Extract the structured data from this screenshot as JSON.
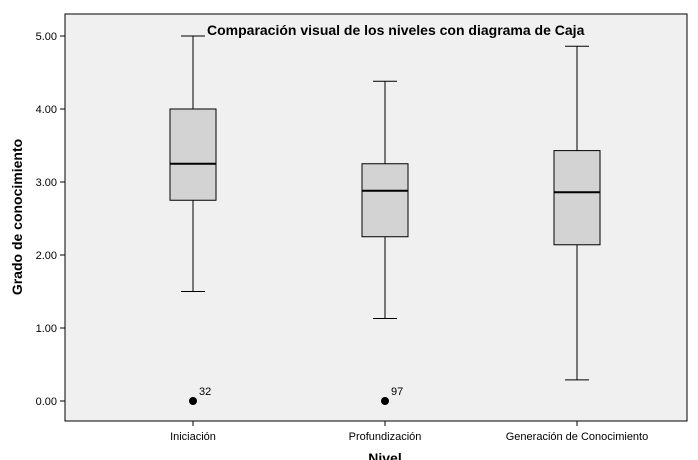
{
  "chart_data": {
    "type": "boxplot",
    "title": "Comparación visual de los niveles con diagrama de Caja",
    "xlabel": "Nivel",
    "ylabel": "Grado de conocimiento",
    "ylim": [
      0,
      5.15
    ],
    "yticks": [
      "0.00",
      "1.00",
      "2.00",
      "3.00",
      "4.00",
      "5.00"
    ],
    "grid": false,
    "colors": {
      "plot_bg": "#f0f0f0",
      "box_fill": "#d3d3d3",
      "stroke": "#000000"
    },
    "categories": [
      "Iniciación",
      "Profundización",
      "Generación de Conocimiento"
    ],
    "boxes": [
      {
        "min": 1.5,
        "q1": 2.75,
        "median": 3.25,
        "q3": 4.0,
        "max": 5.0,
        "outliers": [
          {
            "value": 0.0,
            "label": "32"
          }
        ]
      },
      {
        "min": 1.13,
        "q1": 2.25,
        "median": 2.88,
        "q3": 3.25,
        "max": 4.38,
        "outliers": [
          {
            "value": 0.0,
            "label": "97"
          }
        ]
      },
      {
        "min": 0.29,
        "q1": 2.14,
        "median": 2.86,
        "q3": 3.43,
        "max": 4.86,
        "outliers": []
      }
    ]
  }
}
